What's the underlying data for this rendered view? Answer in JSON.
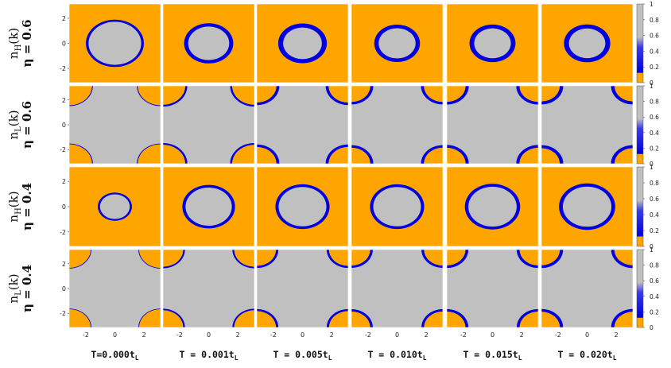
{
  "chart_data": {
    "type": "heatmap",
    "title": "",
    "colorscale": {
      "low_color": "#ffa500",
      "mid_color": "#0000e0",
      "high_color": "#c0c0c0",
      "range": [
        0,
        1
      ],
      "ticks": [
        "0",
        "0.2",
        "0.4",
        "0.6",
        "0.8",
        "1"
      ]
    },
    "x_ticks": [
      "-2",
      "0",
      "2"
    ],
    "y_ticks": [
      "2",
      "0",
      "-2"
    ],
    "xlim": [
      -3.14,
      3.14
    ],
    "ylim": [
      -3.14,
      3.14
    ],
    "columns": [
      {
        "label": "T=0.000t",
        "sub": "L"
      },
      {
        "label": "T = 0.001t",
        "sub": "L"
      },
      {
        "label": "T = 0.005t",
        "sub": "L"
      },
      {
        "label": "T = 0.010t",
        "sub": "L"
      },
      {
        "label": "T = 0.015t",
        "sub": "L"
      },
      {
        "label": "T = 0.020t",
        "sub": "L"
      }
    ],
    "rows": [
      {
        "n_label": "n",
        "n_sub": "H",
        "k_label": "(k)",
        "eta_label": "η = 0.6",
        "surface": "hole",
        "fermi_radius": [
          1.9,
          1.55,
          1.5,
          1.42,
          1.42,
          1.42
        ],
        "band_width": [
          0.18,
          0.28,
          0.34,
          0.3,
          0.32,
          0.34
        ]
      },
      {
        "n_label": "n",
        "n_sub": "L",
        "k_label": "(k)",
        "eta_label": "η = 0.6",
        "surface": "electron",
        "fermi_radius": [
          1.6,
          1.6,
          1.45,
          1.4,
          1.4,
          1.38
        ],
        "band_width": [
          0.06,
          0.14,
          0.2,
          0.2,
          0.22,
          0.24
        ]
      },
      {
        "n_label": "n",
        "n_sub": "H",
        "k_label": "(k)",
        "eta_label": "η = 0.4",
        "surface": "hole",
        "fermi_radius": [
          1.1,
          1.7,
          1.75,
          1.75,
          1.78,
          1.8
        ],
        "band_width": [
          0.15,
          0.22,
          0.22,
          0.22,
          0.24,
          0.26
        ]
      },
      {
        "n_label": "n",
        "n_sub": "L",
        "k_label": "(k)",
        "eta_label": "η = 0.4",
        "surface": "electron",
        "fermi_radius": [
          1.5,
          1.45,
          1.4,
          1.38,
          1.38,
          1.38
        ],
        "band_width": [
          0.05,
          0.12,
          0.16,
          0.18,
          0.2,
          0.22
        ]
      }
    ]
  }
}
